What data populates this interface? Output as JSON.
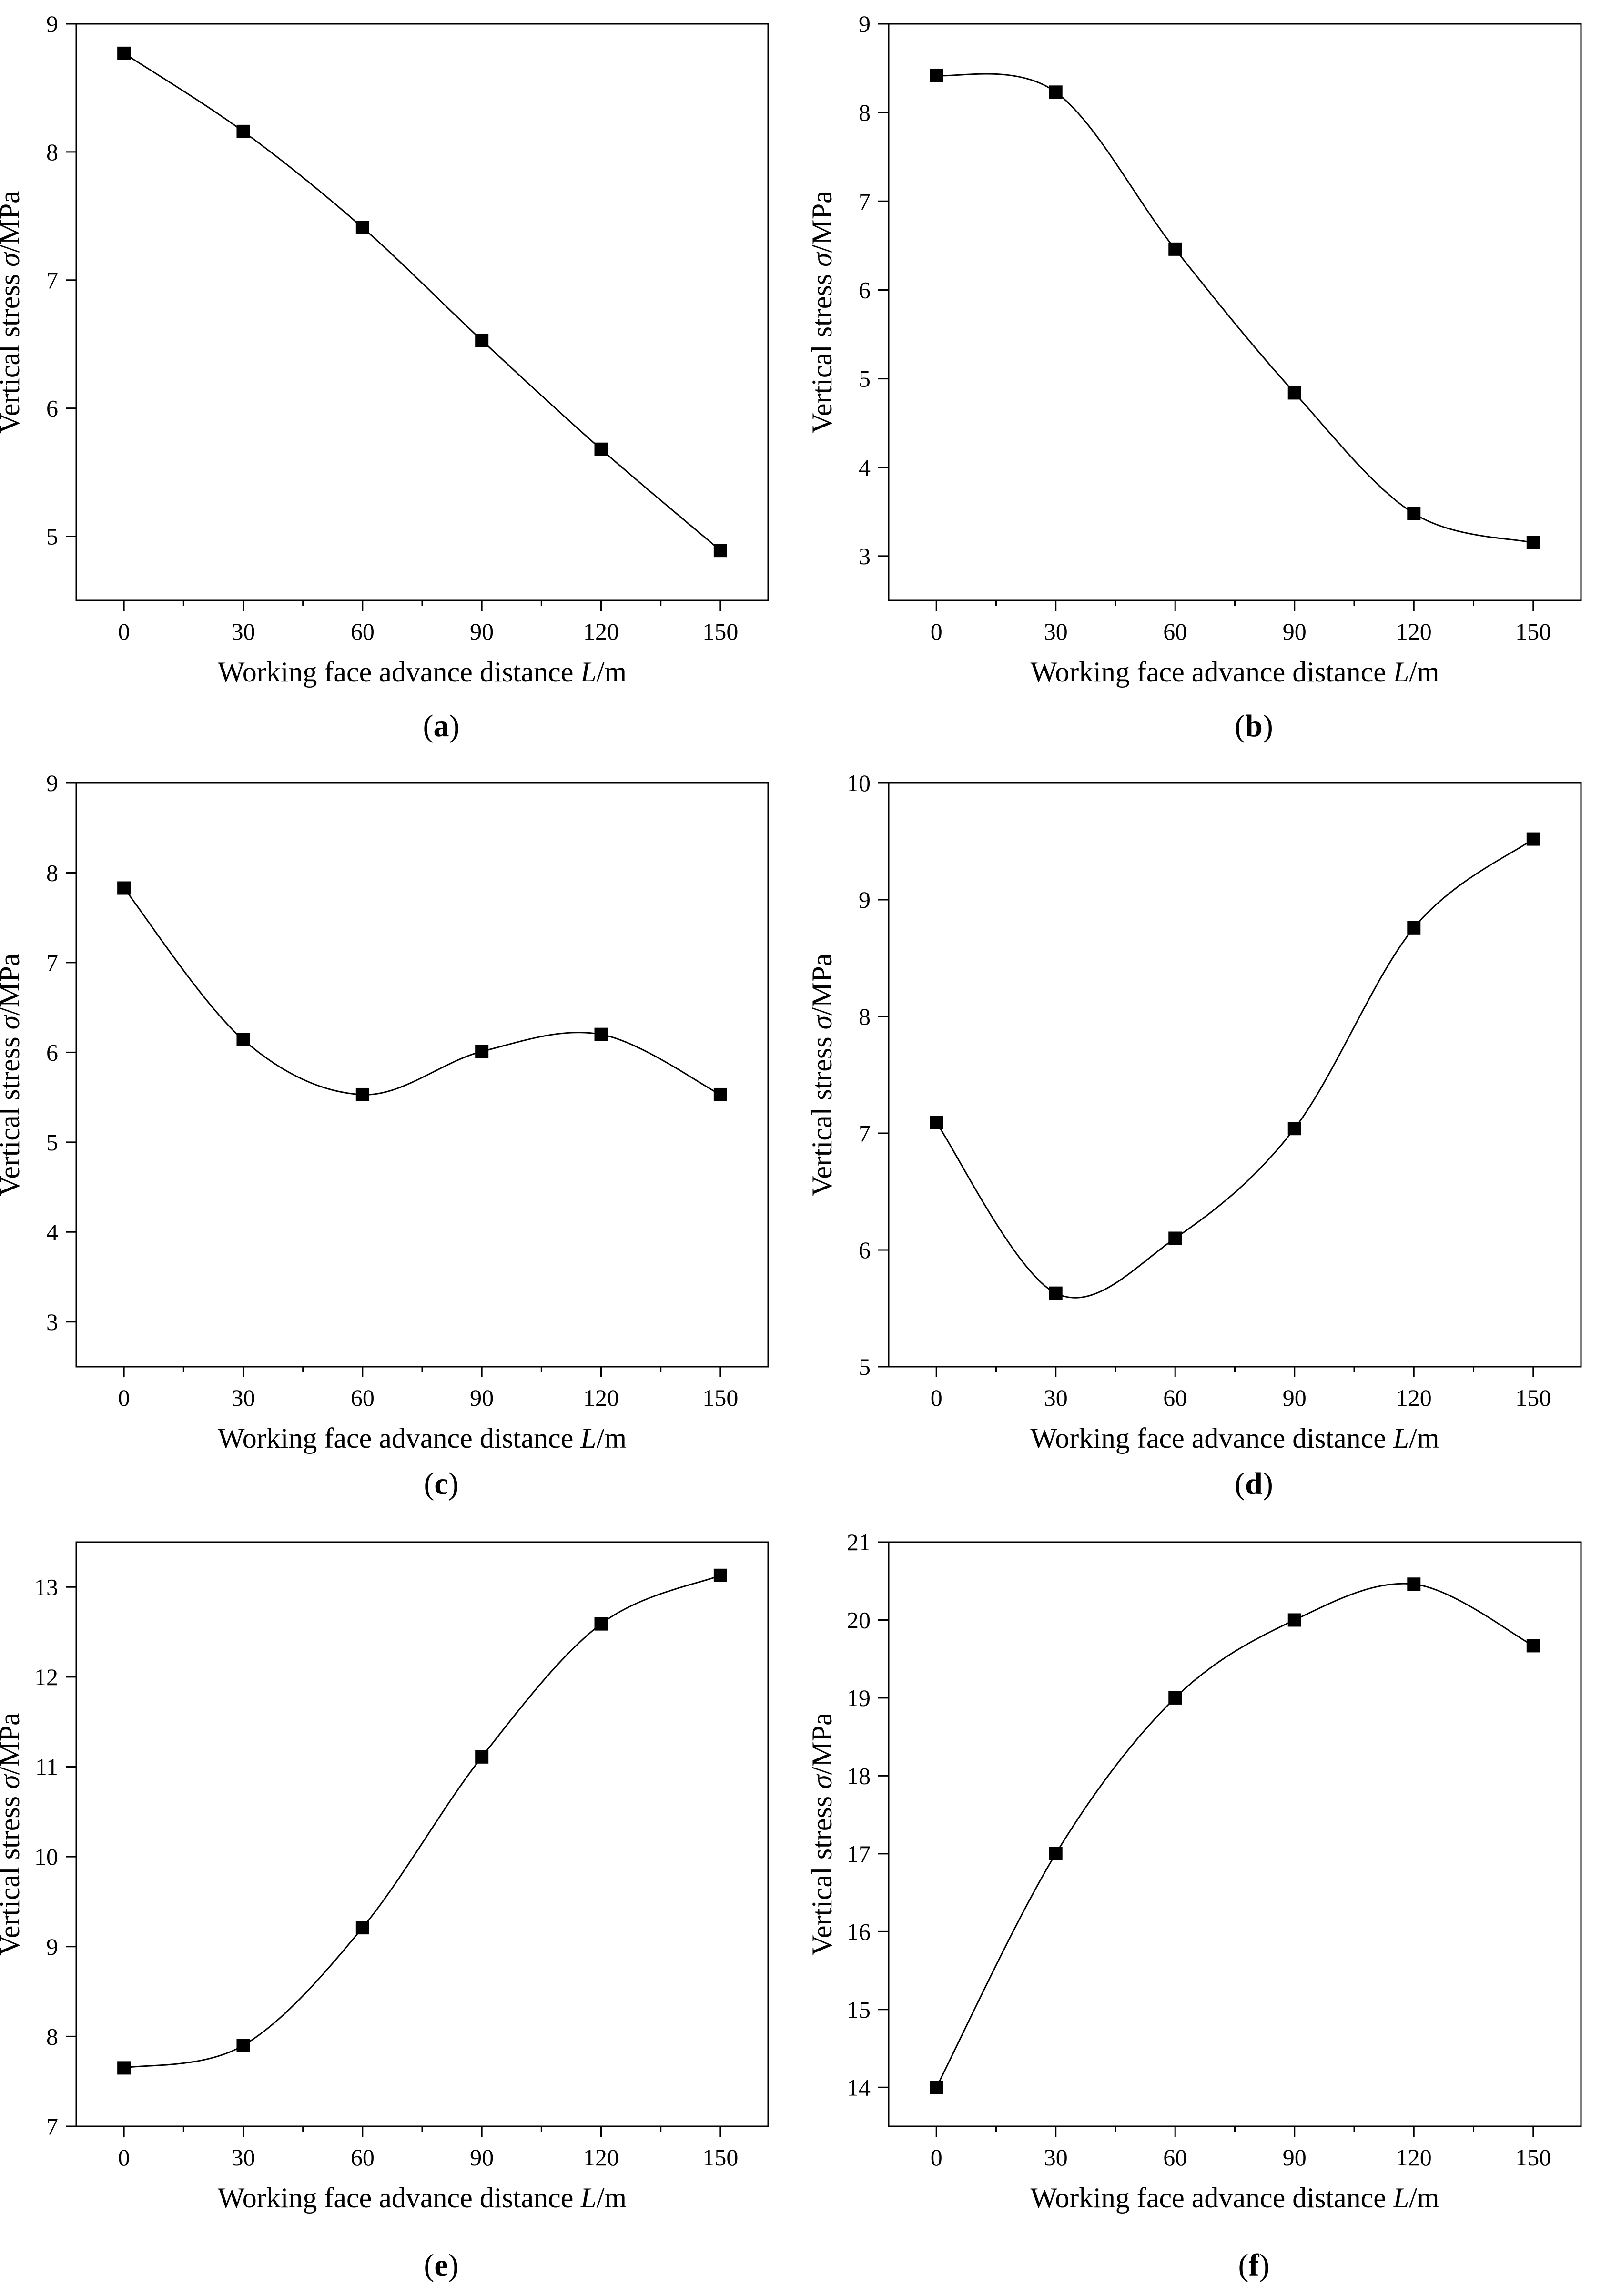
{
  "chart_data": [
    {
      "type": "line",
      "panel": "a",
      "xlabel": "Working face advance distance L/m",
      "ylabel": "Vertical stress σ/MPa",
      "x": [
        0,
        30,
        60,
        90,
        120,
        150
      ],
      "y": [
        8.77,
        8.16,
        7.41,
        6.53,
        5.68,
        4.89
      ],
      "xlim": [
        -12,
        162
      ],
      "ylim": [
        4.5,
        9
      ],
      "xticks": [
        0,
        30,
        60,
        90,
        120,
        150
      ],
      "yticks": [
        5,
        6,
        7,
        8,
        9
      ],
      "marker": "square",
      "line": "spline"
    },
    {
      "type": "line",
      "panel": "b",
      "xlabel": "Working face advance distance L/m",
      "ylabel": "Vertical stress σ/MPa",
      "x": [
        0,
        30,
        60,
        90,
        120,
        150
      ],
      "y": [
        8.42,
        8.23,
        6.46,
        4.84,
        3.48,
        3.15
      ],
      "xlim": [
        -12,
        162
      ],
      "ylim": [
        2.5,
        9
      ],
      "xticks": [
        0,
        30,
        60,
        90,
        120,
        150
      ],
      "yticks": [
        3,
        4,
        5,
        6,
        7,
        8,
        9
      ],
      "marker": "square",
      "line": "spline"
    },
    {
      "type": "line",
      "panel": "c",
      "xlabel": "Working face advance distance L/m",
      "ylabel": "Vertical stress σ/MPa",
      "x": [
        0,
        30,
        60,
        90,
        120,
        150
      ],
      "y": [
        7.83,
        6.14,
        5.53,
        6.01,
        6.2,
        5.53
      ],
      "xlim": [
        -12,
        162
      ],
      "ylim": [
        2.5,
        9
      ],
      "xticks": [
        0,
        30,
        60,
        90,
        120,
        150
      ],
      "yticks": [
        3,
        4,
        5,
        6,
        7,
        8,
        9
      ],
      "marker": "square",
      "line": "spline"
    },
    {
      "type": "line",
      "panel": "d",
      "xlabel": "Working face advance distance L/m",
      "ylabel": "Vertical stress σ/MPa",
      "x": [
        0,
        30,
        60,
        90,
        120,
        150
      ],
      "y": [
        7.09,
        5.63,
        6.1,
        7.04,
        8.76,
        9.52
      ],
      "xlim": [
        -12,
        162
      ],
      "ylim": [
        5,
        10
      ],
      "xticks": [
        0,
        30,
        60,
        90,
        120,
        150
      ],
      "yticks": [
        5,
        6,
        7,
        8,
        9,
        10
      ],
      "marker": "square",
      "line": "spline"
    },
    {
      "type": "line",
      "panel": "e",
      "xlabel": "Working face advance distance L/m",
      "ylabel": "Vertical stress σ/MPa",
      "x": [
        0,
        30,
        60,
        90,
        120,
        150
      ],
      "y": [
        7.65,
        7.9,
        9.21,
        11.11,
        12.59,
        13.13
      ],
      "xlim": [
        -12,
        162
      ],
      "ylim": [
        7,
        13.5
      ],
      "xticks": [
        0,
        30,
        60,
        90,
        120,
        150
      ],
      "yticks": [
        7,
        8,
        9,
        10,
        11,
        12,
        13
      ],
      "marker": "square",
      "line": "spline"
    },
    {
      "type": "line",
      "panel": "f",
      "xlabel": "Working face advance distance L/m",
      "ylabel": "Vertical stress σ/MPa",
      "x": [
        0,
        30,
        60,
        90,
        120,
        150
      ],
      "y": [
        14.0,
        17.0,
        19.0,
        20.0,
        20.46,
        19.67
      ],
      "xlim": [
        -12,
        162
      ],
      "ylim": [
        13.5,
        21
      ],
      "xticks": [
        0,
        30,
        60,
        90,
        120,
        150
      ],
      "yticks": [
        14,
        15,
        16,
        17,
        18,
        19,
        20,
        21
      ],
      "marker": "square",
      "line": "spline"
    }
  ],
  "labels": {
    "xlabel_main": "Working face advance distance ",
    "xlabel_var": "L",
    "xlabel_unit": "/m",
    "ylabel_main": "Vertical stress ",
    "ylabel_var": "σ",
    "ylabel_unit": "/MPa"
  },
  "captions": [
    {
      "open": "(",
      "letter": "a",
      "close": ")"
    },
    {
      "open": "(",
      "letter": "b",
      "close": ")"
    },
    {
      "open": "(",
      "letter": "c",
      "close": ")"
    },
    {
      "open": "(",
      "letter": "d",
      "close": ")"
    },
    {
      "open": "(",
      "letter": "e",
      "close": ")"
    },
    {
      "open": "(",
      "letter": "f",
      "close": ")"
    }
  ]
}
